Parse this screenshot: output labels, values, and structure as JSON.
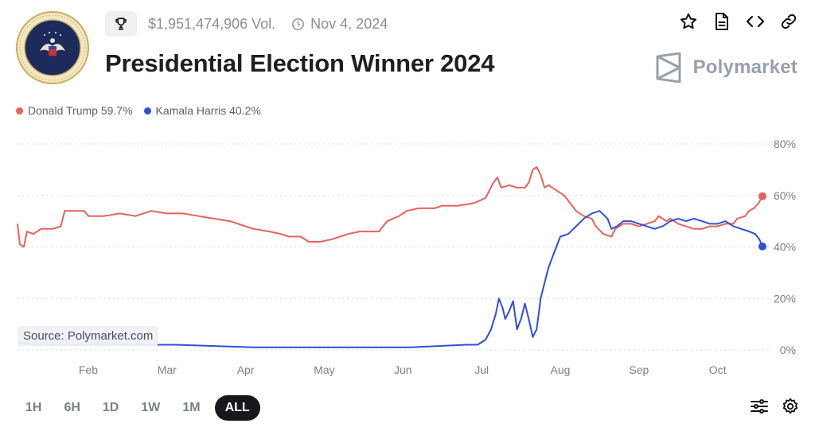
{
  "header": {
    "volume": "$1,951,474,906 Vol.",
    "date": "Nov 4, 2024",
    "title": "Presidential Election Winner 2024",
    "brand": "Polymarket",
    "seal_text": "SEAL OF THE PRESIDENT OF THE UNITED STATES"
  },
  "legend": [
    {
      "label": "Donald Trump 59.7%",
      "color": "#e6625b"
    },
    {
      "label": "Kamala Harris 40.2%",
      "color": "#2f4fd8"
    }
  ],
  "source": "Source: Polymarket.com",
  "ranges": [
    "1H",
    "6H",
    "1D",
    "1W",
    "1M",
    "ALL"
  ],
  "active_range": "ALL",
  "icons": {
    "top": [
      "star-icon",
      "document-icon",
      "code-icon",
      "link-icon"
    ],
    "bottom": [
      "sliders-icon",
      "gear-icon"
    ],
    "meta": [
      "trophy-icon",
      "clock-icon"
    ]
  },
  "chart_data": {
    "type": "line",
    "x_ticks": [
      "Feb",
      "Mar",
      "Apr",
      "May",
      "Jun",
      "Jul",
      "Aug",
      "Sep",
      "Oct"
    ],
    "y_ticks": [
      "80%",
      "60%",
      "40%",
      "20%",
      "0%"
    ],
    "ylim": [
      0,
      80
    ],
    "grid": true,
    "x_domain": [
      0,
      9.47
    ],
    "series": [
      {
        "name": "Donald Trump",
        "color": "#e6625b",
        "points": [
          [
            0,
            49
          ],
          [
            0.03,
            41
          ],
          [
            0.08,
            40
          ],
          [
            0.12,
            46
          ],
          [
            0.2,
            45
          ],
          [
            0.3,
            47
          ],
          [
            0.45,
            47
          ],
          [
            0.55,
            48
          ],
          [
            0.6,
            54
          ],
          [
            0.85,
            54
          ],
          [
            0.9,
            52
          ],
          [
            1.1,
            52
          ],
          [
            1.3,
            53
          ],
          [
            1.5,
            52
          ],
          [
            1.6,
            53
          ],
          [
            1.7,
            54
          ],
          [
            1.9,
            53
          ],
          [
            2.1,
            53
          ],
          [
            2.3,
            52
          ],
          [
            2.5,
            51
          ],
          [
            2.7,
            50
          ],
          [
            2.9,
            48
          ],
          [
            3.0,
            47
          ],
          [
            3.2,
            46
          ],
          [
            3.35,
            45
          ],
          [
            3.45,
            44
          ],
          [
            3.6,
            44
          ],
          [
            3.7,
            42
          ],
          [
            3.85,
            42
          ],
          [
            4.0,
            43
          ],
          [
            4.2,
            45
          ],
          [
            4.35,
            46
          ],
          [
            4.45,
            46
          ],
          [
            4.6,
            46
          ],
          [
            4.62,
            47
          ],
          [
            4.7,
            50
          ],
          [
            4.85,
            52
          ],
          [
            4.95,
            54
          ],
          [
            5.1,
            55
          ],
          [
            5.3,
            55
          ],
          [
            5.4,
            56
          ],
          [
            5.6,
            56
          ],
          [
            5.8,
            57
          ],
          [
            5.95,
            59
          ],
          [
            6.0,
            62
          ],
          [
            6.05,
            65
          ],
          [
            6.1,
            67
          ],
          [
            6.15,
            63
          ],
          [
            6.25,
            64
          ],
          [
            6.35,
            63
          ],
          [
            6.45,
            63
          ],
          [
            6.5,
            65
          ],
          [
            6.55,
            70
          ],
          [
            6.6,
            71
          ],
          [
            6.65,
            68
          ],
          [
            6.7,
            63
          ],
          [
            6.75,
            64
          ],
          [
            6.85,
            62
          ],
          [
            6.95,
            60
          ],
          [
            7.0,
            58
          ],
          [
            7.1,
            54
          ],
          [
            7.2,
            52
          ],
          [
            7.3,
            51
          ],
          [
            7.35,
            48
          ],
          [
            7.45,
            45
          ],
          [
            7.55,
            44
          ],
          [
            7.6,
            47
          ],
          [
            7.7,
            49
          ],
          [
            7.8,
            49
          ],
          [
            7.9,
            48
          ],
          [
            8.0,
            49
          ],
          [
            8.1,
            50
          ],
          [
            8.15,
            52
          ],
          [
            8.25,
            50
          ],
          [
            8.3,
            51
          ],
          [
            8.4,
            49
          ],
          [
            8.5,
            48
          ],
          [
            8.6,
            47
          ],
          [
            8.7,
            47
          ],
          [
            8.8,
            48
          ],
          [
            8.9,
            48
          ],
          [
            9.0,
            49
          ],
          [
            9.1,
            49
          ],
          [
            9.15,
            51
          ],
          [
            9.25,
            52
          ],
          [
            9.3,
            54
          ],
          [
            9.36,
            55
          ],
          [
            9.42,
            57
          ],
          [
            9.47,
            59.7
          ]
        ]
      },
      {
        "name": "Kamala Harris",
        "color": "#2f4fd8",
        "points": [
          [
            0,
            3
          ],
          [
            0.2,
            2
          ],
          [
            1.0,
            2
          ],
          [
            2.0,
            2
          ],
          [
            3.0,
            1
          ],
          [
            4.0,
            1
          ],
          [
            5.0,
            1
          ],
          [
            5.7,
            2
          ],
          [
            5.85,
            2
          ],
          [
            5.95,
            4
          ],
          [
            6.02,
            8
          ],
          [
            6.08,
            14
          ],
          [
            6.12,
            20
          ],
          [
            6.17,
            16
          ],
          [
            6.2,
            12
          ],
          [
            6.25,
            15
          ],
          [
            6.3,
            19
          ],
          [
            6.35,
            8
          ],
          [
            6.4,
            12
          ],
          [
            6.45,
            18
          ],
          [
            6.5,
            12
          ],
          [
            6.55,
            5
          ],
          [
            6.6,
            8
          ],
          [
            6.65,
            20
          ],
          [
            6.7,
            26
          ],
          [
            6.75,
            32
          ],
          [
            6.8,
            36
          ],
          [
            6.85,
            40
          ],
          [
            6.9,
            44
          ],
          [
            7.0,
            45
          ],
          [
            7.1,
            48
          ],
          [
            7.2,
            51
          ],
          [
            7.3,
            53
          ],
          [
            7.4,
            54
          ],
          [
            7.5,
            51
          ],
          [
            7.55,
            47
          ],
          [
            7.62,
            48
          ],
          [
            7.7,
            50
          ],
          [
            7.8,
            50
          ],
          [
            7.9,
            49
          ],
          [
            8.0,
            48
          ],
          [
            8.1,
            47
          ],
          [
            8.2,
            48
          ],
          [
            8.3,
            50
          ],
          [
            8.4,
            51
          ],
          [
            8.5,
            50
          ],
          [
            8.6,
            51
          ],
          [
            8.7,
            50
          ],
          [
            8.8,
            49
          ],
          [
            8.9,
            49
          ],
          [
            9.0,
            50
          ],
          [
            9.1,
            48
          ],
          [
            9.2,
            47
          ],
          [
            9.3,
            46
          ],
          [
            9.38,
            45
          ],
          [
            9.43,
            43
          ],
          [
            9.47,
            40.2
          ]
        ]
      }
    ]
  }
}
